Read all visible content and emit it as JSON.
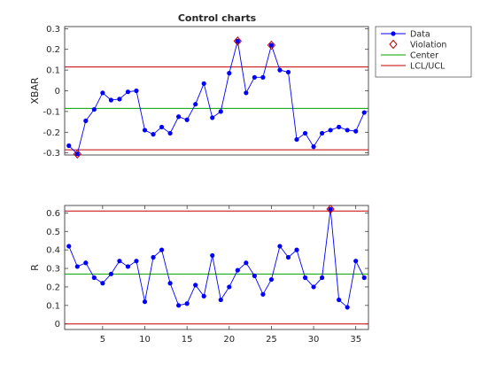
{
  "chart_data": {
    "type": "line",
    "title": "Control charts",
    "legend": {
      "placement": "top-right-outside",
      "entries": [
        {
          "label": "Data",
          "color": "#0000ff",
          "marker": "dot-line"
        },
        {
          "label": "Violation",
          "color": "#c00000",
          "marker": "diamond"
        },
        {
          "label": "Center",
          "color": "#00a000",
          "marker": "line"
        },
        {
          "label": "LCL/UCL",
          "color": "#c00000",
          "marker": "line"
        }
      ]
    },
    "colors": {
      "data": "#0000ff",
      "violation": "#c00000",
      "center": "#00a000",
      "limits": "#c00000"
    },
    "x": [
      1,
      2,
      3,
      4,
      5,
      6,
      7,
      8,
      9,
      10,
      11,
      12,
      13,
      14,
      15,
      16,
      17,
      18,
      19,
      20,
      21,
      22,
      23,
      24,
      25,
      26,
      27,
      28,
      29,
      30,
      31,
      32,
      33,
      34,
      35,
      36
    ],
    "charts": [
      {
        "ylabel": "XBAR",
        "xlim": [
          0.5,
          36.5
        ],
        "ylim": [
          -0.31,
          0.31
        ],
        "yticks": [
          -0.3,
          -0.2,
          -0.1,
          0,
          0.1,
          0.2,
          0.3
        ],
        "ytick_labels": [
          "-0.3",
          "-0.2",
          "-0.1",
          "0",
          "0.1",
          "0.2",
          "0.3"
        ],
        "xticks": [],
        "center": -0.085,
        "lcl": -0.285,
        "ucl": 0.115,
        "values": [
          -0.265,
          -0.305,
          -0.145,
          -0.09,
          -0.01,
          -0.045,
          -0.04,
          -0.005,
          -0.0,
          -0.19,
          -0.21,
          -0.175,
          -0.205,
          -0.125,
          -0.14,
          -0.065,
          0.035,
          -0.13,
          -0.1,
          0.085,
          0.24,
          -0.01,
          0.065,
          0.065,
          0.22,
          0.1,
          0.09,
          -0.235,
          -0.205,
          -0.27,
          -0.205,
          -0.19,
          -0.175,
          -0.19,
          -0.195,
          -0.105
        ],
        "violations": [
          2,
          21,
          25
        ]
      },
      {
        "ylabel": "R",
        "xlim": [
          0.5,
          36.5
        ],
        "ylim": [
          -0.03,
          0.64
        ],
        "yticks": [
          0,
          0.1,
          0.2,
          0.3,
          0.4,
          0.5,
          0.6
        ],
        "ytick_labels": [
          "0",
          "0.1",
          "0.2",
          "0.3",
          "0.4",
          "0.5",
          "0.6"
        ],
        "xticks": [
          5,
          10,
          15,
          20,
          25,
          30,
          35
        ],
        "xtick_labels": [
          "5",
          "10",
          "15",
          "20",
          "25",
          "30",
          "35"
        ],
        "center": 0.27,
        "lcl": 0,
        "ucl": 0.61,
        "values": [
          0.42,
          0.31,
          0.33,
          0.25,
          0.22,
          0.27,
          0.34,
          0.31,
          0.34,
          0.12,
          0.36,
          0.4,
          0.22,
          0.1,
          0.11,
          0.21,
          0.15,
          0.37,
          0.13,
          0.2,
          0.29,
          0.33,
          0.26,
          0.16,
          0.24,
          0.42,
          0.36,
          0.4,
          0.25,
          0.2,
          0.25,
          0.62,
          0.13,
          0.09,
          0.34,
          0.25
        ],
        "violations": [
          32
        ]
      }
    ]
  }
}
